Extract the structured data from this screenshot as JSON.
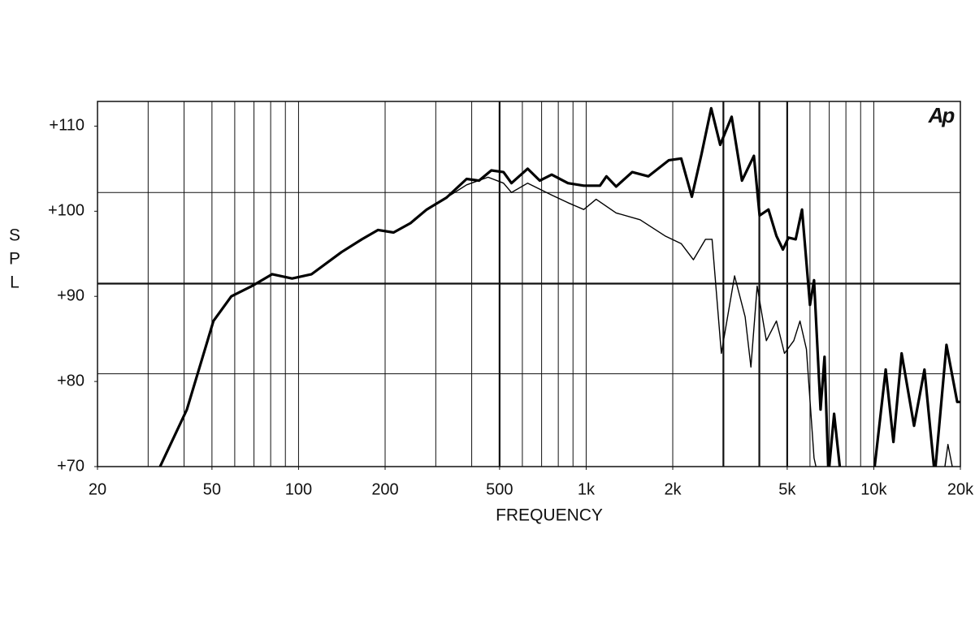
{
  "chart_data": {
    "type": "line",
    "logo": "Ap",
    "xlabel": "FREQUENCY",
    "ylabel": "SPL",
    "xscale": "log",
    "xlim": [
      20,
      20000
    ],
    "ylim": [
      70,
      112.9
    ],
    "xticks": [
      20,
      50,
      100,
      200,
      500,
      {
        "value": 1000,
        "label": "1k"
      },
      {
        "value": 2000,
        "label": "2k"
      },
      {
        "value": 5000,
        "label": "5k"
      },
      {
        "value": 10000,
        "label": "10k"
      },
      {
        "value": 20000,
        "label": "20k"
      }
    ],
    "yticks": [
      {
        "value": 70,
        "label": "+70"
      },
      {
        "value": 80,
        "label": "+80"
      },
      {
        "value": 90,
        "label": "+90"
      },
      {
        "value": 100,
        "label": "+100"
      },
      {
        "value": 110,
        "label": "+110"
      }
    ],
    "xgrid": [
      30,
      40,
      50,
      60,
      70,
      80,
      90,
      100,
      200,
      300,
      400,
      500,
      600,
      700,
      800,
      900,
      1000,
      2000,
      3000,
      4000,
      5000,
      6000,
      7000,
      8000,
      9000,
      10000
    ],
    "xgrid_bold": [
      500,
      3000,
      4000,
      5000
    ],
    "ygrid": [
      80.9,
      91.5,
      102.2
    ],
    "ygrid_bold": [
      91.5
    ],
    "series": [
      {
        "color": "#000000",
        "width": 3.2,
        "x": [
          33,
          40.9,
          50.6,
          58.4,
          68.8,
          81,
          95,
          111,
          141,
          166,
          189,
          214,
          245,
          279,
          327,
          384,
          424,
          468,
          516,
          550,
          626,
          690,
          759,
          864,
          981,
          1117,
          1176,
          1271,
          1446,
          1645,
          1940,
          2140,
          2330,
          2518,
          2721,
          2924,
          3205,
          3482,
          3830,
          4010,
          4303,
          4586,
          4830,
          5050,
          5350,
          5630,
          6000,
          6200,
          6530,
          6740,
          6960,
          7280,
          7670,
          8500,
          9990,
          11000,
          11700,
          12500,
          13800,
          15000,
          16300,
          17900,
          19500,
          20000
        ],
        "values": [
          70,
          76.7,
          87.1,
          90,
          91.2,
          92.6,
          92.1,
          92.6,
          95.2,
          96.7,
          97.8,
          97.5,
          98.6,
          100.2,
          101.6,
          103.8,
          103.6,
          104.8,
          104.6,
          103.3,
          105,
          103.6,
          104.3,
          103.3,
          103,
          103,
          104.1,
          102.9,
          104.6,
          104.1,
          106,
          106.2,
          101.7,
          106.7,
          112.1,
          107.8,
          111.1,
          103.6,
          106.5,
          99.5,
          100.2,
          97.1,
          95.5,
          96.9,
          96.7,
          100.2,
          89,
          91.9,
          76.7,
          82.9,
          69,
          76.2,
          69,
          null,
          69,
          81.4,
          72.9,
          83.3,
          74.8,
          81.4,
          69,
          84.3,
          77.6,
          77.6
        ]
      },
      {
        "color": "#000000",
        "width": 1.4,
        "x": [
          33,
          40.9,
          50.6,
          58.4,
          68.8,
          81,
          95,
          111,
          141,
          166,
          189,
          214,
          245,
          279,
          327,
          384,
          456,
          516,
          550,
          626,
          759,
          864,
          981,
          1083,
          1271,
          1540,
          1880,
          2140,
          2360,
          2600,
          2740,
          2950,
          3280,
          3570,
          3740,
          3930,
          4230,
          4586,
          4890,
          5270,
          5540,
          5830,
          6200,
          6390,
          6600,
          17500,
          18100,
          19000
        ],
        "values": [
          70,
          76.7,
          87.1,
          90,
          91.2,
          92.6,
          92.1,
          92.6,
          95.2,
          96.7,
          97.8,
          97.5,
          98.6,
          100.2,
          101.6,
          103.1,
          104,
          103.3,
          102.2,
          103.3,
          101.9,
          101,
          100.2,
          101.4,
          99.8,
          99,
          97.1,
          96.2,
          94.3,
          96.7,
          96.7,
          83.3,
          92.4,
          87.6,
          81.7,
          91.2,
          84.8,
          87.1,
          83.3,
          84.8,
          87.1,
          83.8,
          71,
          69,
          null,
          69,
          72.6,
          69
        ]
      }
    ]
  }
}
